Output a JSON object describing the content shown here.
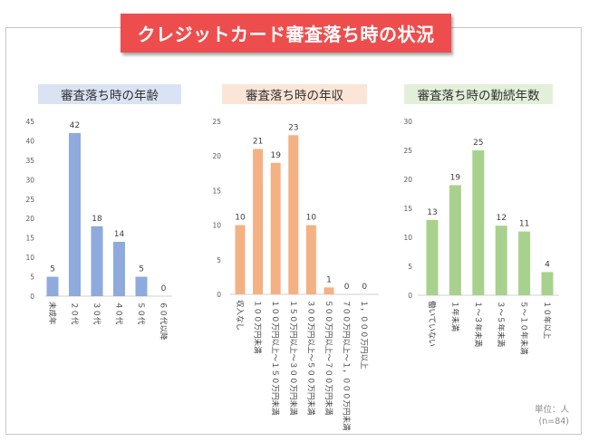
{
  "title": "クレジットカード審査落ち時の状況",
  "unit_note": {
    "line1": "単位：人",
    "line2": "(n=84)"
  },
  "chart_data": [
    {
      "type": "bar",
      "title": "審査落ち時の年齢",
      "title_bg": "#dae3f3",
      "color": "#8faadc",
      "ylim": [
        0,
        45
      ],
      "yticks": [
        0,
        5,
        10,
        15,
        20,
        25,
        30,
        35,
        40,
        45
      ],
      "categories": [
        "未成年",
        "２０代",
        "３０代",
        "４０代",
        "５０代",
        "６０代以降"
      ],
      "values": [
        5,
        42,
        18,
        14,
        5,
        0
      ]
    },
    {
      "type": "bar",
      "title": "審査落ち時の年収",
      "title_bg": "#fbe5d6",
      "color": "#f4b183",
      "ylim": [
        0,
        25
      ],
      "yticks": [
        0,
        5,
        10,
        15,
        20,
        25
      ],
      "categories": [
        "収入なし",
        "１００万円未満",
        "１００万円以上〜１５０万円未満",
        "１５０万円以上〜３００万円未満",
        "３００万円以上〜５００万円未満",
        "５００万円以上〜７００万円未満",
        "７００万円以上〜１，０００万円未満",
        "１，０００万円以上"
      ],
      "values": [
        10,
        21,
        19,
        23,
        10,
        1,
        0,
        0
      ]
    },
    {
      "type": "bar",
      "title": "審査落ち時の勤続年数",
      "title_bg": "#e2f0d9",
      "color": "#a9d18e",
      "ylim": [
        0,
        30
      ],
      "yticks": [
        0,
        5,
        10,
        15,
        20,
        25,
        30
      ],
      "categories": [
        "働いていない",
        "１年未満",
        "１〜３年未満",
        "３〜５年未満",
        "５〜１０年未満",
        "１０年以上"
      ],
      "values": [
        13,
        19,
        25,
        12,
        11,
        4
      ]
    }
  ]
}
